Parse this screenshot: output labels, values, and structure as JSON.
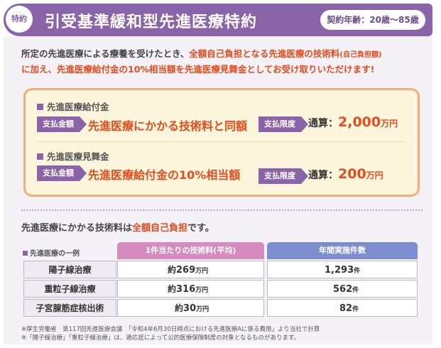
{
  "header": {
    "badge": "特約",
    "title": "引受基準緩和型先進医療特約",
    "age": "契約年齢：20歳〜85歳"
  },
  "intro": {
    "line1_prefix": "所定の先進医療による療養を受けたとき、",
    "line1_highlight": "全額自己負担となる先進医療の技術料",
    "line1_small": "(自己負担額)",
    "line2": "に加え、先進医療給付金の10%相当額を先進医療見舞金としてお受け取りいただけます!"
  },
  "benefits": [
    {
      "name": "先進医療給付金",
      "pay_tag": "支払金額",
      "pay_text": "先進医療にかかる技術料と同額",
      "limit_tag": "支払限度",
      "limit_prefix": "通算：",
      "limit_value": "2,000",
      "limit_unit": "万円"
    },
    {
      "name": "先進医療見舞金",
      "pay_tag": "支払金額",
      "pay_text": "先進医療給付金の10%相当額",
      "limit_tag": "支払限度",
      "limit_prefix": "通算：",
      "limit_value": "200",
      "limit_unit": "万円"
    }
  ],
  "summary": {
    "prefix": "先進医療にかかる技術料は",
    "highlight": "全額自己負担",
    "suffix": "です。"
  },
  "table": {
    "title": "先進医療の一例",
    "headers": [
      "1件当たりの技術料(平均)",
      "年間実施件数"
    ],
    "rows": [
      {
        "name": "陽子線治療",
        "fee_prefix": "約",
        "fee": "269",
        "fee_unit": "万円",
        "count": "1,293",
        "count_unit": "件"
      },
      {
        "name": "重粒子線治療",
        "fee_prefix": "約",
        "fee": "316",
        "fee_unit": "万円",
        "count": "562",
        "count_unit": "件"
      },
      {
        "name": "子宮腺筋症核出術",
        "fee_prefix": "約",
        "fee": "30",
        "fee_unit": "万円",
        "count": "82",
        "count_unit": "件"
      }
    ]
  },
  "notes": [
    "※厚生労働省　第117回先進医療会議　「令和4年6月30日時点における先進医療Aに係る費用」より当社で計算",
    "※「陽子線治療」「重粒子線治療」は、適応症によって公的医療保険制度の対象となるものがあります。"
  ],
  "colors": {
    "accent": "#8a63a8",
    "highlight": "#e64b1c",
    "box_border": "#f3ad79",
    "header_pink": "#d68bc0",
    "header_blue": "#7c8ed0"
  }
}
